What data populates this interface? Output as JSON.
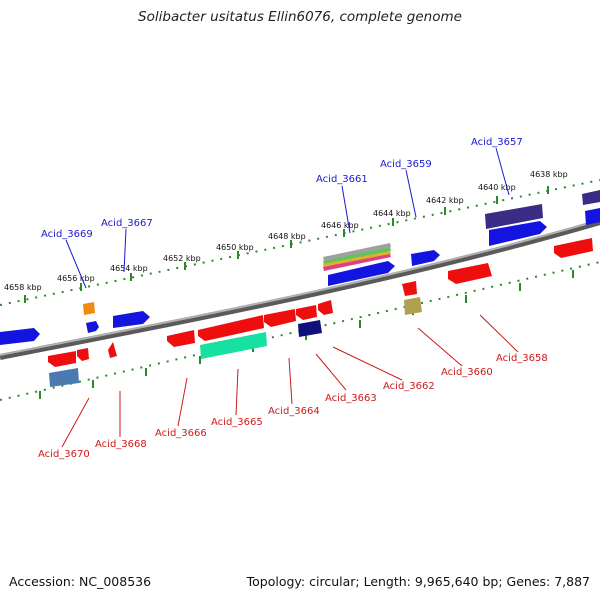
{
  "header": {
    "title": "Solibacter usitatus Ellin6076, complete genome"
  },
  "footer": {
    "accession": "Accession: NC_008536",
    "summary": "Topology: circular; Length: 9,965,640 bp; Genes: 7,887"
  },
  "colors": {
    "backbone": "#8a8a8a",
    "tick": "#2a8a2a",
    "forward_label": "#1a1acc",
    "reverse_label": "#cc1a1a"
  },
  "ruler_labels": [
    "4638 kbp",
    "4640 kbp",
    "4642 kbp",
    "4644 kbp",
    "4646 kbp",
    "4648 kbp",
    "4650 kbp",
    "4652 kbp",
    "4654 kbp",
    "4656 kbp",
    "4658 kbp"
  ],
  "gene_labels": {
    "forward": [
      "Acid_3657",
      "Acid_3659",
      "Acid_3661",
      "Acid_3667",
      "Acid_3669"
    ],
    "reverse": [
      "Acid_3658",
      "Acid_3660",
      "Acid_3662",
      "Acid_3663",
      "Acid_3664",
      "Acid_3665",
      "Acid_3666",
      "Acid_3668",
      "Acid_3670"
    ]
  }
}
